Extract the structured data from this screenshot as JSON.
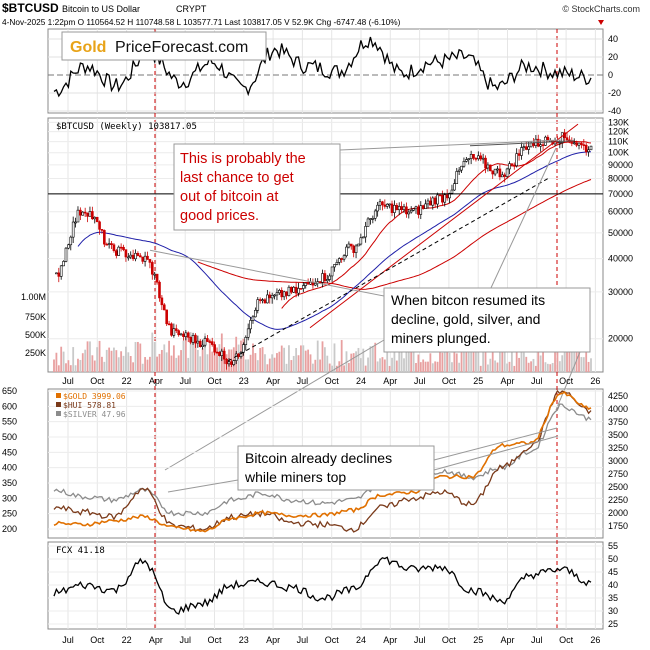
{
  "header": {
    "symbol": "$BTCUSD",
    "description": "Bitcoin to US Dollar",
    "exchange": "CRYPT",
    "watermark": "© StockCharts.com",
    "quote_line": "4-Nov-2025 1:22pm   O 110564.52  H 110748.58  L 103577.71  Last 103817.05  V 52.9K  Chg -6747.48 (-6.10%)"
  },
  "logo": {
    "word1": "Gold",
    "word2": "PriceForecast.com"
  },
  "colors": {
    "btc_up": "#000000",
    "btc_down": "#cc0000",
    "ma_short": "#cc0000",
    "ma_mid": "#1f1fa8",
    "ma_long": "#cc0000",
    "trend_dash": "#000000",
    "gold": "#e07000",
    "hui": "#7a3a1a",
    "silver": "#8c8c8c",
    "volume": "#c9c9c9",
    "volume_red": "#e8a0a0",
    "guide": "#cc0000",
    "annotation_red": "#cc0000"
  },
  "chart_data": [
    {
      "panel": "top-indicator",
      "type": "line",
      "y_ticks": [
        40,
        20,
        0,
        -20,
        -40
      ],
      "ylim": [
        -40,
        48
      ],
      "x": [
        "Jul 21",
        "Oct 21",
        "Jan 22",
        "Apr 22",
        "Jul 22",
        "Oct 22",
        "Jan 23",
        "Apr 23",
        "Jul 23",
        "Oct 23",
        "Jan 24",
        "Apr 24",
        "Jul 24",
        "Oct 24",
        "Jan 25",
        "Apr 25",
        "Jul 25",
        "Oct 25"
      ],
      "values": [
        -18,
        10,
        -12,
        25,
        -8,
        14,
        -15,
        28,
        10,
        4,
        40,
        2,
        14,
        20,
        -14,
        10,
        2,
        -3
      ]
    },
    {
      "panel": "btc-weekly",
      "type": "candlestick",
      "title": "$BTCUSD (Weekly) 103817.05",
      "scale": "log",
      "ylim": [
        15000,
        135000
      ],
      "y_ticks": [
        "130K",
        "120K",
        "110K",
        "100K",
        "90000",
        "80000",
        "70000",
        "60000",
        "50000",
        "40000",
        "30000",
        "20000"
      ],
      "volume_ticks": [
        "1.00M",
        "750K",
        "500K",
        "250K"
      ],
      "x": [
        "Jul 21",
        "Oct 21",
        "Jan 22",
        "Apr 22",
        "Jul 22",
        "Oct 22",
        "Jan 23",
        "Apr 23",
        "Jul 23",
        "Oct 23",
        "Jan 24",
        "Apr 24",
        "Jul 24",
        "Oct 24",
        "Jan 25",
        "Apr 25",
        "Jul 25",
        "Oct 25",
        "Nov 25"
      ],
      "close": [
        34000,
        61000,
        43000,
        40000,
        21000,
        19500,
        16500,
        28000,
        30000,
        34000,
        44000,
        63000,
        60000,
        68000,
        95000,
        84000,
        108000,
        114000,
        103800
      ],
      "horizontal_line": 70000,
      "resistance_line": 108000,
      "annotations": [
        "This is probably the last chance to get out of bitcoin at good prices.",
        "When bitcon resumed its decline, gold, silver, and miners plunged."
      ]
    },
    {
      "panel": "metals",
      "type": "line",
      "left_ticks": [
        650,
        600,
        550,
        500,
        450,
        400,
        350,
        300,
        250,
        200
      ],
      "right_ticks": [
        4250,
        4000,
        3750,
        3500,
        3250,
        3000,
        2750,
        2500,
        2250,
        2000,
        1750
      ],
      "x": [
        "Jul 21",
        "Oct 21",
        "Jan 22",
        "Apr 22",
        "Jul 22",
        "Oct 22",
        "Jan 23",
        "Apr 23",
        "Jul 23",
        "Oct 23",
        "Jan 24",
        "Apr 24",
        "Jul 24",
        "Oct 24",
        "Jan 25",
        "Apr 25",
        "Jul 25",
        "Oct 25",
        "Nov 25"
      ],
      "series": [
        {
          "name": "$GOLD 3999.06",
          "values": [
            1800,
            1780,
            1850,
            1930,
            1720,
            1650,
            1900,
            2000,
            1950,
            1960,
            2050,
            2350,
            2400,
            2700,
            2700,
            3300,
            3350,
            4300,
            4000
          ]
        },
        {
          "name": "$HUI 578.81",
          "values": [
            270,
            255,
            240,
            330,
            210,
            200,
            240,
            250,
            220,
            215,
            200,
            270,
            300,
            320,
            280,
            400,
            470,
            650,
            580
          ]
        },
        {
          "name": "$SILVER 47.96",
          "values": [
            26,
            24,
            23,
            26,
            19,
            19,
            23,
            25,
            23,
            22,
            23,
            28,
            29,
            32,
            30,
            33,
            38,
            52,
            48
          ]
        }
      ],
      "annotations": [
        "Bitcoin already declines while miners top"
      ]
    },
    {
      "panel": "fcx",
      "type": "line",
      "title": "FCX 41.18",
      "y_ticks": [
        55,
        50,
        45,
        40,
        35,
        30,
        25
      ],
      "ylim": [
        24,
        56
      ],
      "x": [
        "Jul 21",
        "Oct 21",
        "Jan 22",
        "Apr 22",
        "Jul 22",
        "Oct 22",
        "Jan 23",
        "Apr 23",
        "Jul 23",
        "Oct 23",
        "Jan 24",
        "Apr 24",
        "Jul 24",
        "Oct 24",
        "Jan 25",
        "Apr 25",
        "Jul 25",
        "Oct 25",
        "Nov 25"
      ],
      "values": [
        37,
        40,
        38,
        49,
        30,
        33,
        40,
        41,
        39,
        35,
        38,
        50,
        46,
        47,
        38,
        34,
        44,
        46,
        41
      ]
    }
  ],
  "x_axis": {
    "labels": [
      "Jul",
      "Oct",
      "22",
      "Apr",
      "Jul",
      "Oct",
      "23",
      "Apr",
      "Jul",
      "Oct",
      "24",
      "Apr",
      "Jul",
      "Oct",
      "25",
      "Apr",
      "Jul",
      "Oct",
      "26"
    ]
  }
}
